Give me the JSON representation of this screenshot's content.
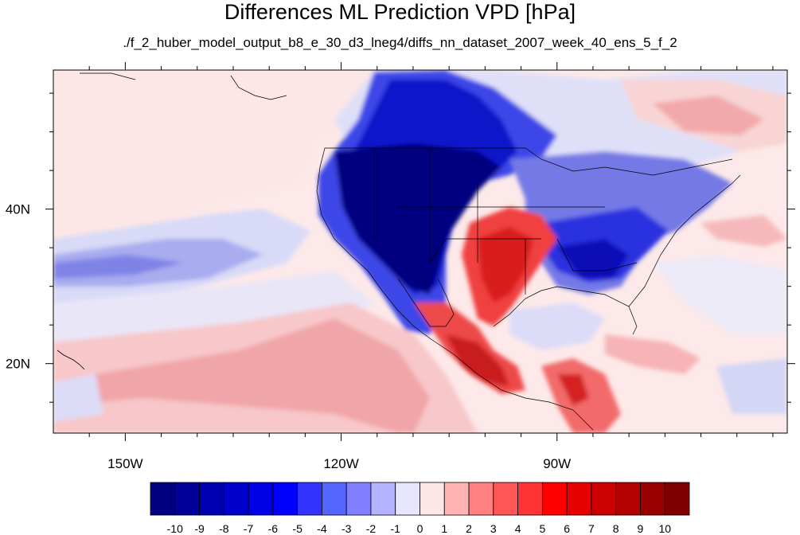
{
  "title": "Differences ML Prediction VPD [hPa]",
  "subtitle": "./f_2_huber_model_output_b8_e_30_d3_lneg4/diffs_nn_dataset_2007_week_40_ens_5_f_2",
  "map": {
    "lon_range": [
      -160,
      -58
    ],
    "lat_range": [
      11,
      58
    ],
    "lon_ticks": [
      {
        "value": -150,
        "label": "150W"
      },
      {
        "value": -120,
        "label": "120W"
      },
      {
        "value": -90,
        "label": "90W"
      }
    ],
    "lat_ticks": [
      {
        "value": 40,
        "label": "40N"
      },
      {
        "value": 20,
        "label": "20N"
      }
    ],
    "field": "VPD difference",
    "units": "hPa",
    "colorbar": {
      "labels": [
        "-10",
        "-9",
        "-8",
        "-7",
        "-6",
        "-5",
        "-4",
        "-3",
        "-2",
        "-1",
        "0",
        "1",
        "2",
        "3",
        "4",
        "5",
        "6",
        "7",
        "8",
        "9",
        "10"
      ],
      "colors": [
        "#000080",
        "#000099",
        "#0000b3",
        "#0000cc",
        "#0000e6",
        "#0000ff",
        "#3333ff",
        "#5566ff",
        "#8080ff",
        "#b3b3ff",
        "#e6e6ff",
        "#ffe6e6",
        "#ffb3b3",
        "#ff8080",
        "#ff5555",
        "#ff3333",
        "#ff0000",
        "#e60000",
        "#cc0000",
        "#b30000",
        "#990000",
        "#800000"
      ]
    }
  }
}
